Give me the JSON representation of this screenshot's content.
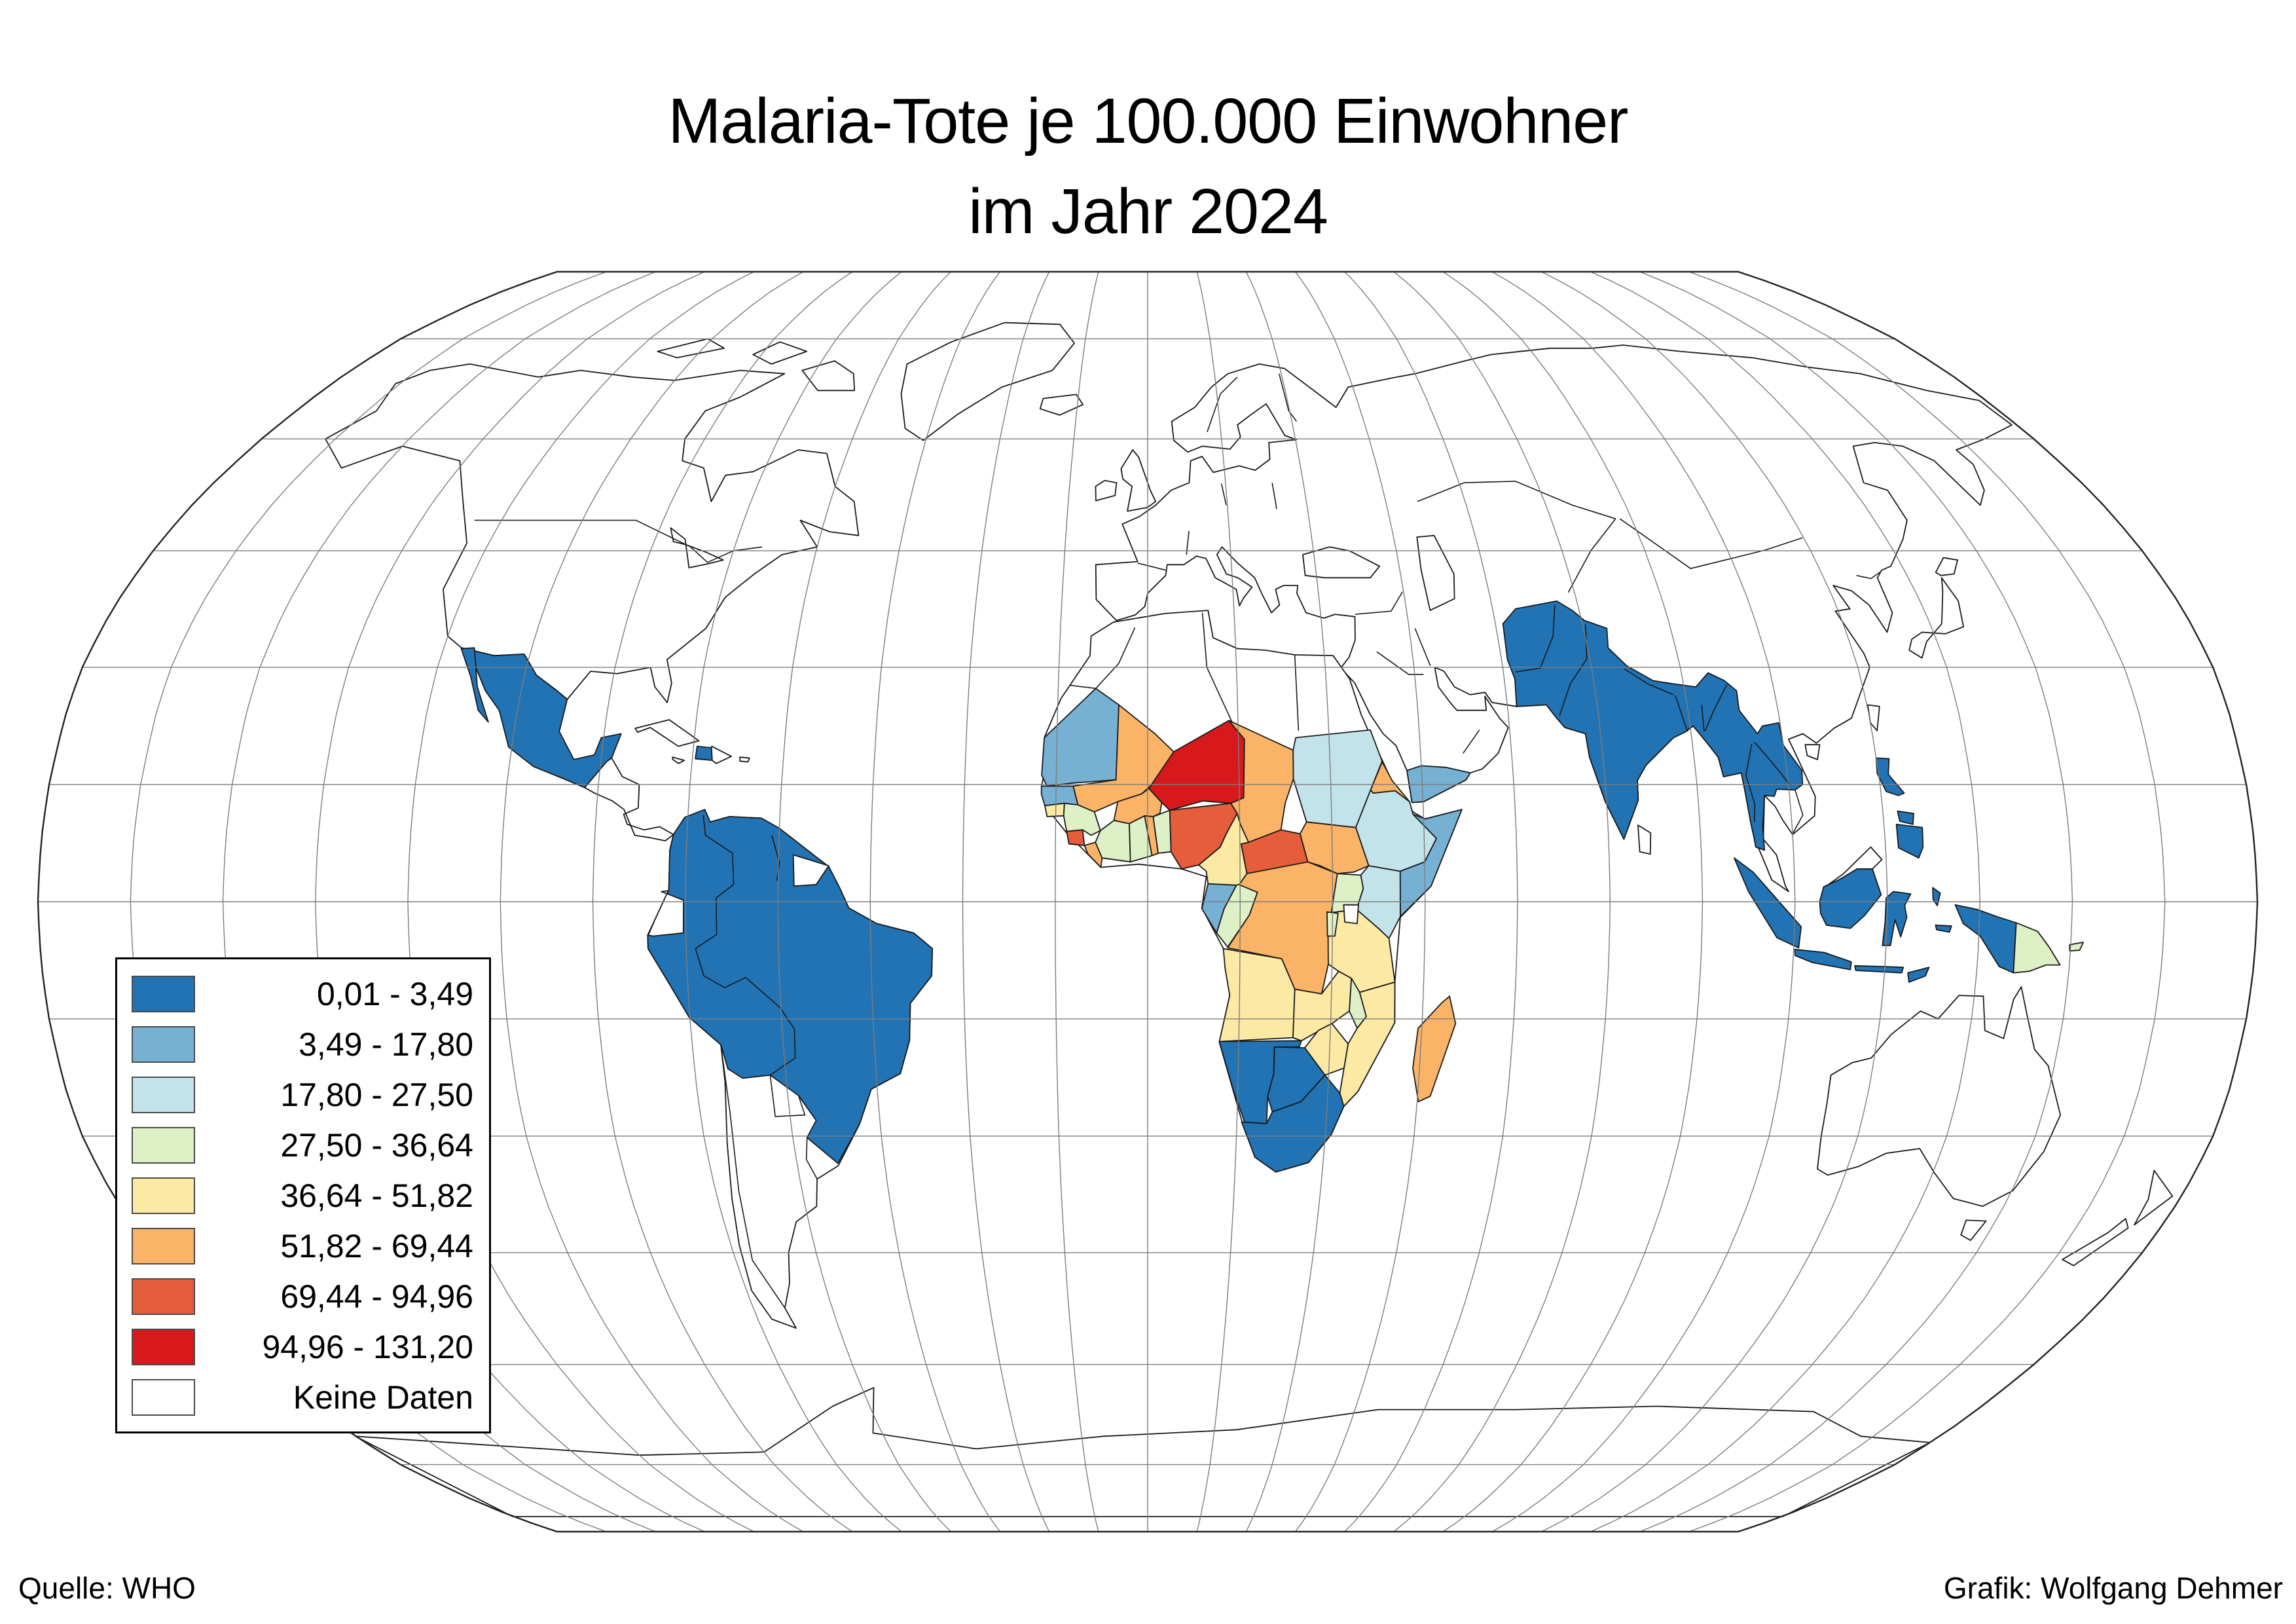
{
  "title": {
    "line1": "Malaria-Tote je 100.000 Einwohner",
    "line2": "im Jahr 2024"
  },
  "legend": {
    "classes": [
      {
        "label": "0,01 - 3,49",
        "color": "#2173B4"
      },
      {
        "label": "3,49 - 17,80",
        "color": "#76B1D4"
      },
      {
        "label": "17,80 - 27,50",
        "color": "#C3E3EA"
      },
      {
        "label": "27,50 - 36,64",
        "color": "#DDF0C6"
      },
      {
        "label": "36,64 - 51,82",
        "color": "#FCE9A4"
      },
      {
        "label": "51,82 - 69,44",
        "color": "#FBB367"
      },
      {
        "label": "69,44 - 94,96",
        "color": "#E55D3A"
      },
      {
        "label": "94,96 - 131,20",
        "color": "#D7191C"
      },
      {
        "label": "Keine Daten",
        "color": "#FFFFFF"
      }
    ]
  },
  "footer": {
    "source": "Quelle: WHO",
    "credit": "Grafik: Wolfgang Dehmer"
  },
  "map": {
    "projection": "Robinson",
    "graticule_interval_deg": 15,
    "country_classes": {
      "mexico": 0,
      "haiti": 0,
      "south-america-belt": 0,
      "south-asia-belt": 0,
      "indonesia": 0,
      "philippines": 0,
      "namibia": 0,
      "botswana": 0,
      "south-africa": 0,
      "mauritania": 1,
      "senegal-gambia": 1,
      "gabon": 1,
      "somalia": 1,
      "yemen": 1,
      "sudan": 2,
      "ethiopia": 2,
      "kenya": 2,
      "guinea": 3,
      "cote-divoire": 3,
      "ghana": 3,
      "benin": 3,
      "uganda": 3,
      "congo": 3,
      "rwanda-burundi": 3,
      "malawi": 3,
      "papua-new-guinea": 3,
      "guinea-bissau": 4,
      "cameroon": 4,
      "tanzania": 4,
      "angola": 4,
      "zambia": 4,
      "mozambique": 4,
      "zimbabwe": 4,
      "mali": 5,
      "burkina-faso": 5,
      "togo": 5,
      "liberia": 5,
      "chad": 5,
      "eritrea": 5,
      "south-sudan": 5,
      "dr-congo": 5,
      "madagascar": 5,
      "sierra-leone": 6,
      "nigeria": 6,
      "central-african-republic": 6,
      "niger": 7,
      "ecuador": 8,
      "suriname-french-guiana": 8,
      "dominican-republic": 8,
      "malaysia-borneo": 8,
      "sri-lanka": 8
    }
  }
}
